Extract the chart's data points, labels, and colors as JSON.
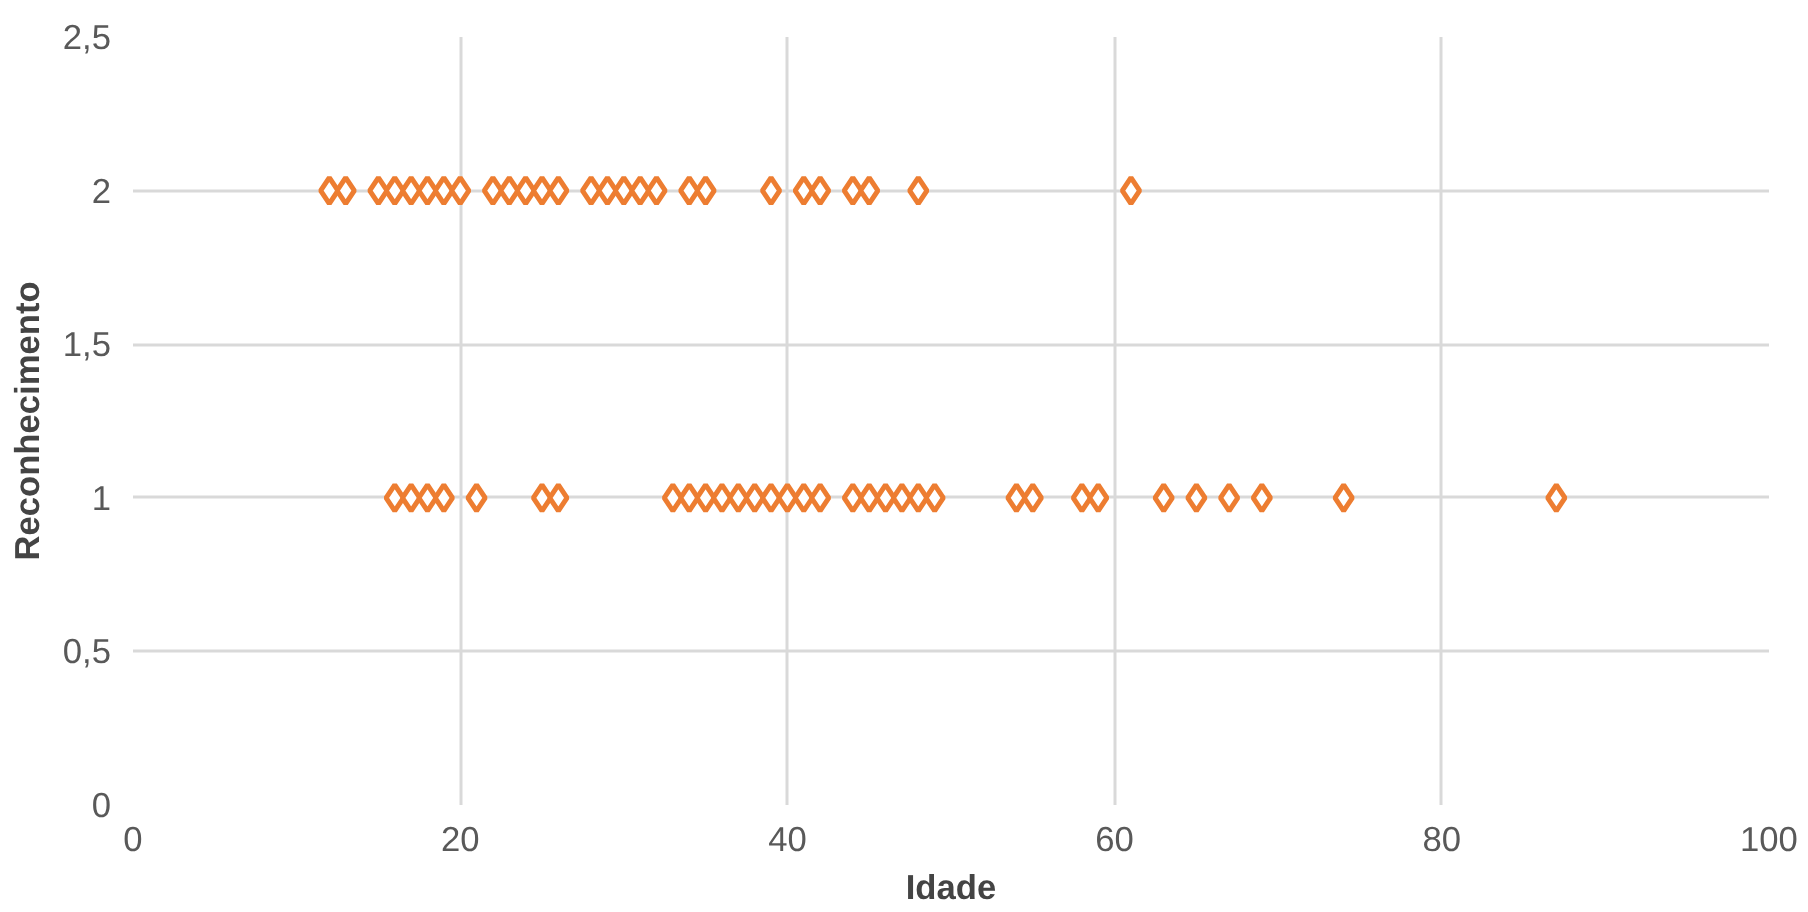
{
  "chart_data": {
    "type": "scatter",
    "xlabel": "Idade",
    "ylabel": "Reconhecimento",
    "marker": "diamond",
    "grid": true,
    "xlim": [
      0,
      100
    ],
    "xticks": [
      0,
      20,
      40,
      60,
      80,
      100
    ],
    "ylim": [
      0,
      2.5
    ],
    "yticks": [
      {
        "value": 0,
        "label": "0"
      },
      {
        "value": 0.5,
        "label": "0,5"
      },
      {
        "value": 1,
        "label": "1"
      },
      {
        "value": 1.5,
        "label": "1,5"
      },
      {
        "value": 2,
        "label": "2"
      },
      {
        "value": 2.5,
        "label": "2,5"
      }
    ],
    "series": [
      {
        "color": "#ed7d31",
        "x": [
          12,
          13,
          15,
          16,
          17,
          18,
          19,
          20,
          22,
          23,
          24,
          25,
          26,
          28,
          29,
          30,
          31,
          32,
          34,
          35,
          39,
          41,
          42,
          44,
          45,
          48,
          61
        ],
        "values": [
          2,
          2,
          2,
          2,
          2,
          2,
          2,
          2,
          2,
          2,
          2,
          2,
          2,
          2,
          2,
          2,
          2,
          2,
          2,
          2,
          2,
          2,
          2,
          2,
          2,
          2,
          2
        ]
      },
      {
        "color": "#ed7d31",
        "x": [
          16,
          17,
          18,
          19,
          21,
          25,
          26,
          33,
          34,
          35,
          36,
          37,
          38,
          39,
          40,
          41,
          42,
          44,
          45,
          46,
          47,
          48,
          49,
          54,
          55,
          58,
          59,
          63,
          65,
          67,
          69,
          74,
          87
        ],
        "values": [
          1,
          1,
          1,
          1,
          1,
          1,
          1,
          1,
          1,
          1,
          1,
          1,
          1,
          1,
          1,
          1,
          1,
          1,
          1,
          1,
          1,
          1,
          1,
          1,
          1,
          1,
          1,
          1,
          1,
          1,
          1,
          1,
          1
        ]
      }
    ]
  }
}
